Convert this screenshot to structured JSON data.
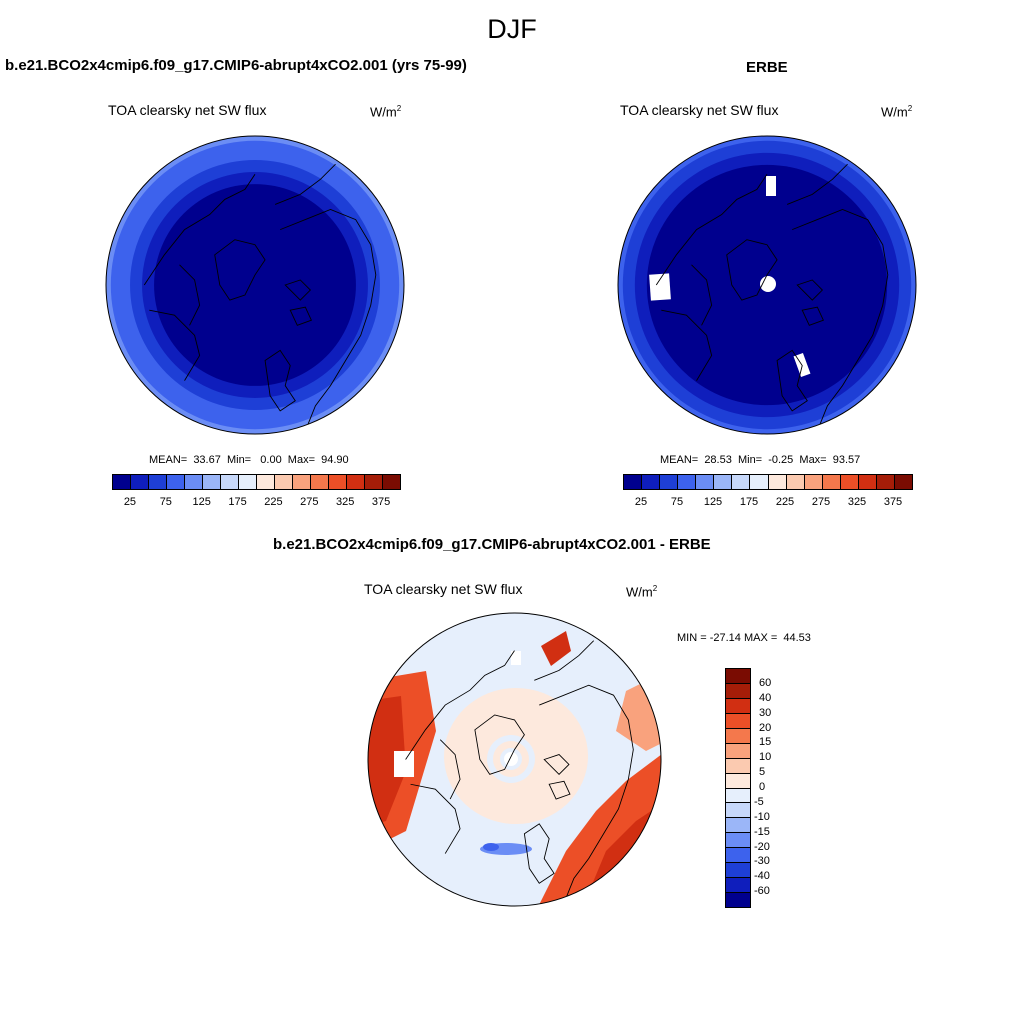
{
  "season": "DJF",
  "left_panel": {
    "title": "b.e21.BCO2x4cmip6.f09_g17.CMIP6-abrupt4xCO2.001 (yrs 75-99)",
    "variable": "TOA clearsky net SW flux",
    "units": "W/m",
    "units_exp": "2",
    "stats": "MEAN=  33.67  Min=   0.00  Max=  94.90"
  },
  "right_panel": {
    "title": "ERBE",
    "variable": "TOA clearsky net SW flux",
    "units": "W/m",
    "units_exp": "2",
    "stats": "MEAN=  28.53  Min=  -0.25  Max=  93.57"
  },
  "diff_panel": {
    "title": "b.e21.BCO2x4cmip6.f09_g17.CMIP6-abrupt4xCO2.001 - ERBE",
    "variable": "TOA clearsky net SW flux",
    "units": "W/m",
    "units_exp": "2",
    "minmax": "MIN = -27.14 MAX =  44.53"
  },
  "chart_data": [
    {
      "type": "heatmap",
      "projection": "north-polar-stereographic",
      "title": "b.e21.BCO2x4cmip6.f09_g17.CMIP6-abrupt4xCO2.001 (yrs 75-99)",
      "variable": "TOA clearsky net SW flux",
      "units": "W/m2",
      "stats": {
        "mean": 33.67,
        "min": 0.0,
        "max": 94.9
      },
      "colorbar": {
        "levels": [
          25,
          50,
          75,
          100,
          125,
          150,
          175,
          200,
          225,
          250,
          275,
          300,
          325,
          350,
          375
        ],
        "tick_labels": [
          "25",
          "75",
          "125",
          "175",
          "225",
          "275",
          "325",
          "375"
        ],
        "colors": [
          "#00008e",
          "#0f1ebc",
          "#1e3fd6",
          "#3d62ed",
          "#6b8df5",
          "#9bb6f8",
          "#c7d8fa",
          "#e6effc",
          "#fde9dd",
          "#fbcab0",
          "#f9a27d",
          "#f4784c",
          "#ec4f27",
          "#d12f12",
          "#a51d08",
          "#7a0c02"
        ]
      },
      "field_levels": [
        {
          "max_lat_from_pole": 42,
          "value": 10
        },
        {
          "max_lat_from_pole": 47,
          "value": 30
        },
        {
          "max_lat_from_pole": 52,
          "value": 50
        },
        {
          "max_lat_from_pole": 60,
          "value": 75
        }
      ]
    },
    {
      "type": "heatmap",
      "projection": "north-polar-stereographic",
      "title": "ERBE",
      "variable": "TOA clearsky net SW flux",
      "units": "W/m2",
      "stats": {
        "mean": 28.53,
        "min": -0.25,
        "max": 93.57
      },
      "colorbar": {
        "levels": [
          25,
          50,
          75,
          100,
          125,
          150,
          175,
          200,
          225,
          250,
          275,
          300,
          325,
          350,
          375
        ],
        "tick_labels": [
          "25",
          "75",
          "125",
          "175",
          "225",
          "275",
          "325",
          "375"
        ],
        "colors": [
          "#00008e",
          "#0f1ebc",
          "#1e3fd6",
          "#3d62ed",
          "#6b8df5",
          "#9bb6f8",
          "#c7d8fa",
          "#e6effc",
          "#fde9dd",
          "#fbcab0",
          "#f9a27d",
          "#f4784c",
          "#ec4f27",
          "#d12f12",
          "#a51d08",
          "#7a0c02"
        ]
      },
      "field_levels": [
        {
          "max_lat_from_pole": 50,
          "value": 10
        },
        {
          "max_lat_from_pole": 55,
          "value": 30
        },
        {
          "max_lat_from_pole": 60,
          "value": 50
        }
      ],
      "missing_data": true
    },
    {
      "type": "heatmap",
      "projection": "north-polar-stereographic",
      "title": "b.e21.BCO2x4cmip6.f09_g17.CMIP6-abrupt4xCO2.001 - ERBE",
      "variable": "TOA clearsky net SW flux",
      "units": "W/m2",
      "stats": {
        "min": -27.14,
        "max": 44.53
      },
      "colorbar": {
        "levels": [
          -60,
          -40,
          -30,
          -20,
          -15,
          -10,
          -5,
          0,
          5,
          10,
          15,
          20,
          30,
          40,
          60
        ],
        "tick_labels": [
          "60",
          "40",
          "30",
          "20",
          "15",
          "10",
          "5",
          "0",
          "-5",
          "-10",
          "-15",
          "-20",
          "-30",
          "-40",
          "-60"
        ],
        "colors": [
          "#00008e",
          "#0f1ebc",
          "#1e3fd6",
          "#3d62ed",
          "#6b8df5",
          "#9bb6f8",
          "#c7d8fa",
          "#e6effc",
          "#fde9dd",
          "#fbcab0",
          "#f9a27d",
          "#f4784c",
          "#ec4f27",
          "#d12f12",
          "#a51d08",
          "#7a0c02"
        ]
      }
    }
  ]
}
